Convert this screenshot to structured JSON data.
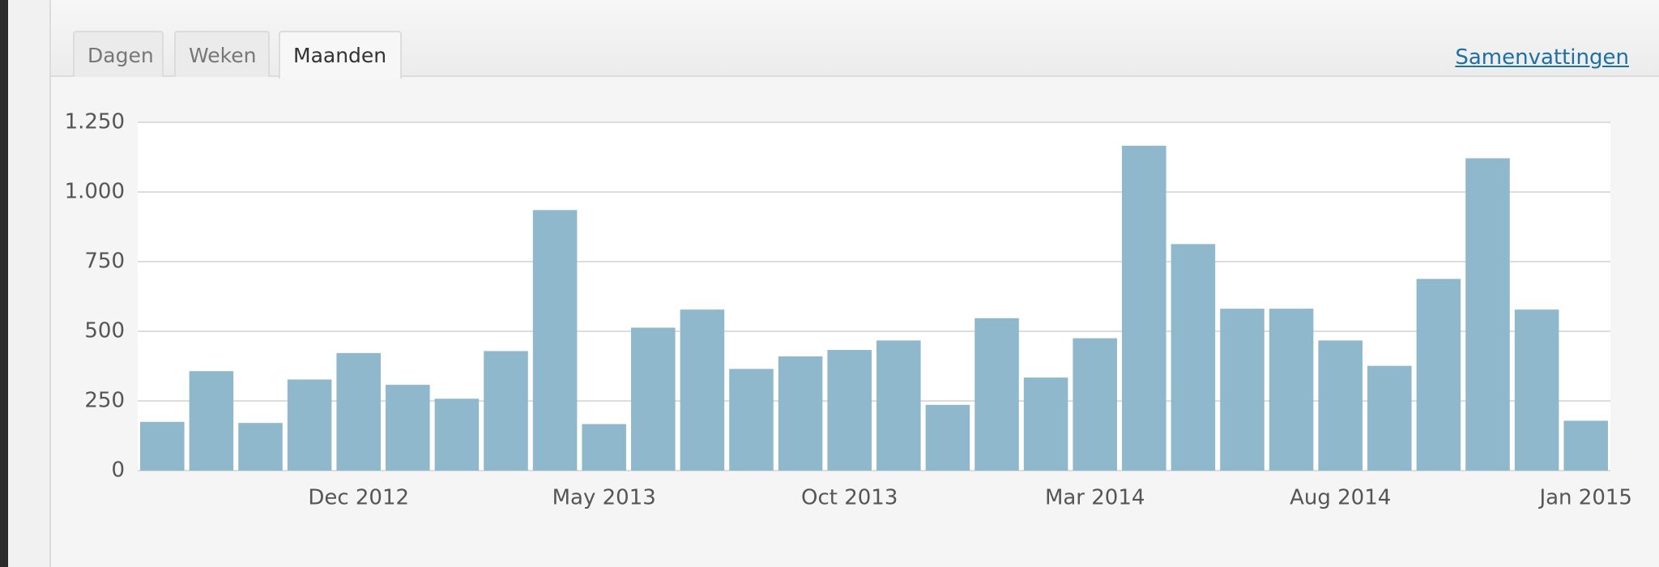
{
  "tabs": [
    "Dagen",
    "Weken",
    "Maanden"
  ],
  "link": "Samenvattingen",
  "chart_data": {
    "type": "bar",
    "categories": [
      null,
      null,
      null,
      null,
      "Dec 2012",
      null,
      null,
      null,
      null,
      "May 2013",
      null,
      null,
      null,
      null,
      "Oct 2013",
      null,
      null,
      null,
      null,
      "Mar 2014",
      null,
      null,
      null,
      null,
      "Aug 2014",
      null,
      null,
      null,
      null,
      "Jan 2015"
    ],
    "values": [
      175,
      357,
      171,
      327,
      422,
      308,
      258,
      429,
      935,
      167,
      513,
      578,
      365,
      410,
      433,
      467,
      236,
      547,
      334,
      475,
      1166,
      813,
      581,
      581,
      467,
      376,
      688,
      1121,
      578,
      179
    ],
    "color": "#8fb8cd",
    "ylim": [
      0,
      1250
    ],
    "yticks": [
      0,
      250,
      500,
      750,
      {
        "value": 1000,
        "label": "1.000"
      },
      {
        "value": 1250,
        "label": "1.250"
      }
    ],
    "grid": true
  }
}
